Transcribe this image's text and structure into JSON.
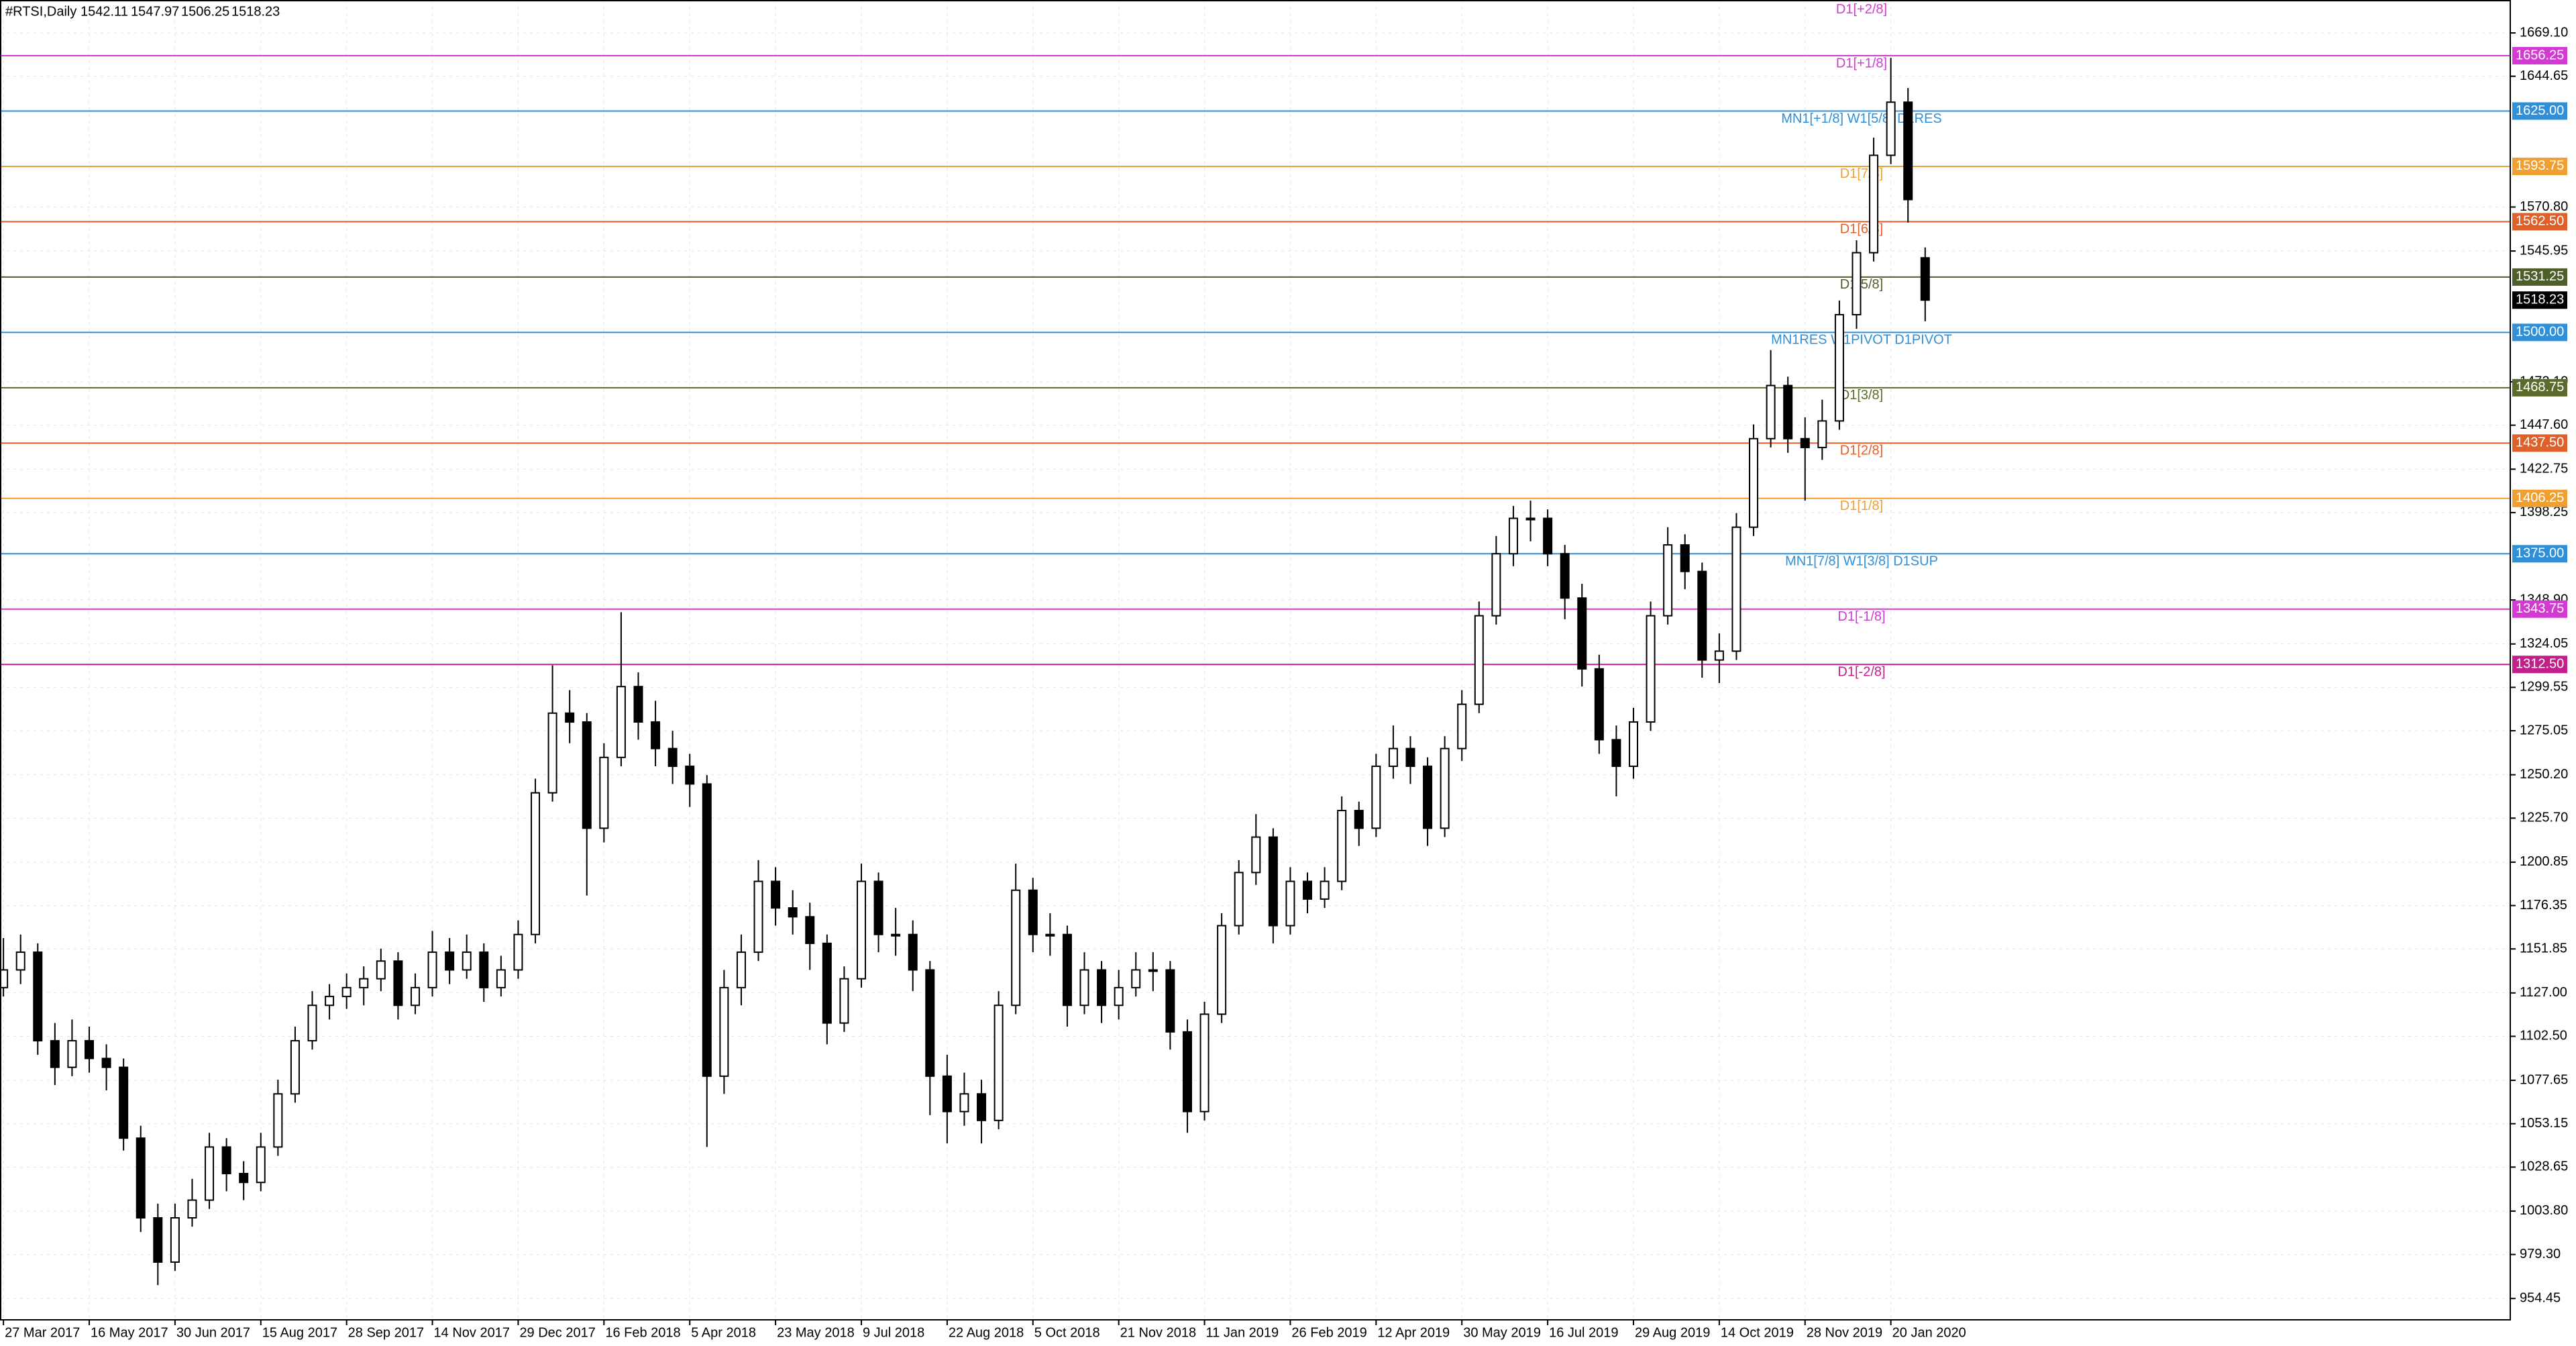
{
  "chart_data": {
    "type": "candlestick",
    "title": "#RTSI,Daily",
    "grid": true,
    "xlim": [
      -0.2,
      146.1
    ],
    "ylim": [
      942.4,
      1687.7
    ],
    "xticks": [
      {
        "value": 0,
        "label": "27 Mar 2017"
      },
      {
        "value": 5,
        "label": "16 May 2017"
      },
      {
        "value": 10,
        "label": "30 Jun 2017"
      },
      {
        "value": 15,
        "label": "15 Aug 2017"
      },
      {
        "value": 20,
        "label": "28 Sep 2017"
      },
      {
        "value": 25,
        "label": "14 Nov 2017"
      },
      {
        "value": 30,
        "label": "29 Dec 2017"
      },
      {
        "value": 35,
        "label": "16 Feb 2018"
      },
      {
        "value": 40,
        "label": "5 Apr 2018"
      },
      {
        "value": 45,
        "label": "23 May 2018"
      },
      {
        "value": 50,
        "label": "9 Jul 2018"
      },
      {
        "value": 55,
        "label": "22 Aug 2018"
      },
      {
        "value": 60,
        "label": "5 Oct 2018"
      },
      {
        "value": 65,
        "label": "21 Nov 2018"
      },
      {
        "value": 70,
        "label": "11 Jan 2019"
      },
      {
        "value": 75,
        "label": "26 Feb 2019"
      },
      {
        "value": 80,
        "label": "12 Apr 2019"
      },
      {
        "value": 85,
        "label": "30 May 2019"
      },
      {
        "value": 90,
        "label": "16 Jul 2019"
      },
      {
        "value": 95,
        "label": "29 Aug 2019"
      },
      {
        "value": 100,
        "label": "14 Oct 2019"
      },
      {
        "value": 105,
        "label": "28 Nov 2019"
      },
      {
        "value": 110,
        "label": "20 Jan 2020"
      }
    ],
    "yticks": [
      {
        "value": 1669.1,
        "label": "1669.10"
      },
      1644.65,
      {
        "value": 1570.8,
        "label": "1570.80"
      },
      1545.95,
      {
        "value": 1472.1,
        "label": "1472.10"
      },
      {
        "value": 1447.6,
        "label": "1447.60"
      },
      1422.75,
      1398.25,
      {
        "value": 1348.9,
        "label": "1348.90"
      },
      1324.05,
      1299.55,
      1275.05,
      {
        "value": 1250.2,
        "label": "1250.20"
      },
      {
        "value": 1225.7,
        "label": "1225.70"
      },
      1200.85,
      1176.35,
      1151.85,
      {
        "value": 1127,
        "label": "1127.00"
      },
      {
        "value": 1102.5,
        "label": "1102.50"
      },
      1077.65,
      1053.15,
      1028.65,
      {
        "value": 1003.8,
        "label": "1003.80"
      },
      {
        "value": 979.3,
        "label": "979.30"
      },
      954.45
    ],
    "open": [
      1130,
      1140,
      1150,
      1100,
      1085,
      1100,
      1090,
      1085,
      1045,
      1000,
      975,
      1000,
      1010,
      1040,
      1025,
      1020,
      1040,
      1070,
      1100,
      1120,
      1125,
      1130,
      1135,
      1145,
      1120,
      1130,
      1150,
      1140,
      1150,
      1130,
      1140,
      1160,
      1240,
      1285,
      1280,
      1220,
      1260,
      1300,
      1280,
      1265,
      1255,
      1245,
      1080,
      1130,
      1150,
      1190,
      1175,
      1170,
      1155,
      1110,
      1135,
      1190,
      1160,
      1160,
      1140,
      1080,
      1060,
      1070,
      1055,
      1120,
      1185,
      1160,
      1160,
      1120,
      1140,
      1120,
      1130,
      1140,
      1140,
      1105,
      1060,
      1115,
      1165,
      1195,
      1215,
      1165,
      1190,
      1180,
      1190,
      1230,
      1220,
      1255,
      1265,
      1255,
      1220,
      1265,
      1290,
      1340,
      1375,
      1395,
      1395,
      1375,
      1350,
      1310,
      1270,
      1255,
      1280,
      1340,
      1380,
      1365,
      1315,
      1320,
      1390,
      1440,
      1470,
      1440,
      1435,
      1450,
      1510,
      1545,
      1600,
      1630,
      1542.11
    ],
    "high": [
      1158,
      1160,
      1155,
      1110,
      1112,
      1108,
      1098,
      1090,
      1052,
      1008,
      1008,
      1022,
      1048,
      1045,
      1032,
      1048,
      1078,
      1108,
      1128,
      1132,
      1138,
      1142,
      1152,
      1150,
      1138,
      1162,
      1158,
      1160,
      1155,
      1148,
      1168,
      1248,
      1312,
      1298,
      1285,
      1268,
      1342,
      1308,
      1292,
      1275,
      1262,
      1250,
      1140,
      1160,
      1202,
      1198,
      1185,
      1178,
      1160,
      1142,
      1200,
      1195,
      1175,
      1168,
      1145,
      1092,
      1082,
      1078,
      1128,
      1200,
      1192,
      1172,
      1165,
      1150,
      1145,
      1140,
      1150,
      1150,
      1145,
      1112,
      1122,
      1172,
      1202,
      1228,
      1220,
      1198,
      1195,
      1198,
      1238,
      1235,
      1262,
      1278,
      1272,
      1260,
      1272,
      1298,
      1348,
      1385,
      1402,
      1405,
      1400,
      1380,
      1358,
      1318,
      1278,
      1288,
      1348,
      1390,
      1386,
      1370,
      1330,
      1398,
      1448,
      1490,
      1475,
      1452,
      1462,
      1518,
      1552,
      1610,
      1655,
      1638,
      1547.97
    ],
    "low": [
      1125,
      1132,
      1092,
      1075,
      1080,
      1082,
      1072,
      1038,
      992,
      962,
      970,
      995,
      1005,
      1015,
      1010,
      1015,
      1035,
      1065,
      1095,
      1112,
      1118,
      1120,
      1128,
      1112,
      1115,
      1125,
      1132,
      1135,
      1122,
      1125,
      1135,
      1155,
      1235,
      1268,
      1182,
      1212,
      1255,
      1270,
      1255,
      1245,
      1232,
      1040,
      1070,
      1120,
      1145,
      1165,
      1160,
      1140,
      1098,
      1105,
      1130,
      1150,
      1148,
      1128,
      1058,
      1042,
      1052,
      1042,
      1050,
      1115,
      1150,
      1148,
      1108,
      1115,
      1110,
      1112,
      1125,
      1128,
      1095,
      1048,
      1055,
      1110,
      1160,
      1188,
      1155,
      1160,
      1172,
      1175,
      1185,
      1210,
      1215,
      1248,
      1245,
      1210,
      1215,
      1258,
      1285,
      1335,
      1368,
      1382,
      1368,
      1338,
      1300,
      1262,
      1238,
      1248,
      1275,
      1335,
      1355,
      1305,
      1302,
      1315,
      1385,
      1435,
      1432,
      1405,
      1428,
      1445,
      1502,
      1540,
      1595,
      1562,
      1506.25
    ],
    "close": [
      1140,
      1150,
      1100,
      1085,
      1100,
      1090,
      1085,
      1045,
      1000,
      975,
      1000,
      1010,
      1040,
      1025,
      1020,
      1040,
      1070,
      1100,
      1120,
      1125,
      1130,
      1135,
      1145,
      1120,
      1130,
      1150,
      1140,
      1150,
      1130,
      1140,
      1160,
      1240,
      1285,
      1280,
      1220,
      1260,
      1300,
      1280,
      1265,
      1255,
      1245,
      1080,
      1130,
      1150,
      1190,
      1175,
      1170,
      1155,
      1110,
      1135,
      1190,
      1160,
      1160,
      1140,
      1080,
      1060,
      1070,
      1055,
      1120,
      1185,
      1160,
      1160,
      1120,
      1140,
      1120,
      1130,
      1140,
      1140,
      1105,
      1060,
      1115,
      1165,
      1195,
      1215,
      1165,
      1190,
      1180,
      1190,
      1230,
      1220,
      1255,
      1265,
      1255,
      1220,
      1265,
      1290,
      1340,
      1375,
      1395,
      1395,
      1375,
      1350,
      1310,
      1270,
      1255,
      1280,
      1340,
      1380,
      1365,
      1315,
      1320,
      1390,
      1440,
      1470,
      1440,
      1435,
      1450,
      1510,
      1545,
      1600,
      1630,
      1575,
      1518.23
    ],
    "top_level": {
      "name": "D1[+2/8]",
      "value": 1687.5
    },
    "levels": {
      "names": [
        "D1[+1/8]",
        "MN1[+1/8] W1[5/8] D1RES",
        "D1[7/8]",
        "D1[6/8]",
        "D1[5/8]",
        "MN1RES W1PIVOT D1PIVOT",
        "D1[3/8]",
        "D1[2/8]",
        "D1[1/8]",
        "MN1[7/8] W1[3/8] D1SUP",
        "D1[-1/8]",
        "D1[-2/8]"
      ],
      "values": [
        1656.25,
        1625,
        1593.75,
        1562.5,
        1531.25,
        1500,
        1468.75,
        1437.5,
        1406.25,
        1375,
        1343.75,
        1312.5
      ],
      "value_labels": [
        "1656.25",
        "1625.00",
        "1593.75",
        "1562.50",
        "1531.25",
        "1500.00",
        "1468.75",
        "1437.50",
        "1406.25",
        "1375.00",
        "1343.75",
        "1312.50"
      ],
      "colors": [
        "#d23ad2",
        "#2f8fd8",
        "#f0a030",
        "#e0602a",
        "#4f5f2a",
        "#2f8fd8",
        "#5a6b2c",
        "#e0602a",
        "#f0a030",
        "#2f8fd8",
        "#d23ad2",
        "#c41e8a"
      ]
    }
  }
}
